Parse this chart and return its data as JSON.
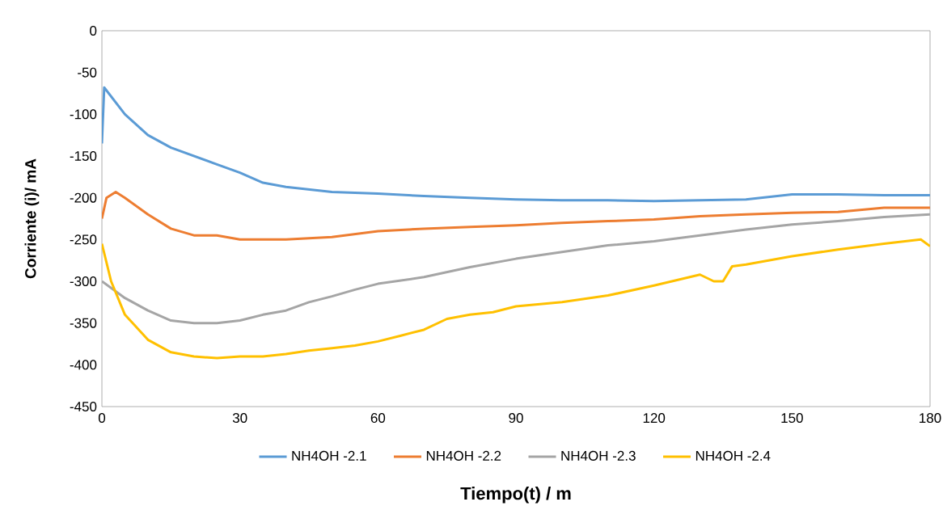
{
  "chart_data": {
    "type": "line",
    "xlabel": "Tiempo(t) / m",
    "ylabel": "Corriente (i)/ mA",
    "xlim": [
      0,
      180
    ],
    "ylim": [
      -450,
      0
    ],
    "xticks": [
      0,
      30,
      60,
      90,
      120,
      150,
      180
    ],
    "yticks": [
      -450,
      -400,
      -350,
      -300,
      -250,
      -200,
      -150,
      -100,
      -50,
      0
    ],
    "grid": false,
    "legend": "bottom",
    "marker": "none",
    "line_style": "solid",
    "series": [
      {
        "name": "NH4OH -2.1",
        "color": "#5b9bd5",
        "x": [
          0,
          0.5,
          5,
          10,
          15,
          20,
          25,
          30,
          35,
          40,
          45,
          50,
          60,
          70,
          80,
          90,
          100,
          110,
          120,
          130,
          140,
          150,
          160,
          170,
          180
        ],
        "values": [
          -135,
          -68,
          -100,
          -125,
          -140,
          -150,
          -160,
          -170,
          -182,
          -187,
          -190,
          -193,
          -195,
          -198,
          -200,
          -202,
          -203,
          -203,
          -204,
          -203,
          -202,
          -196,
          -196,
          -197,
          -197
        ]
      },
      {
        "name": "NH4OH -2.2",
        "color": "#ed7d31",
        "x": [
          0,
          1,
          3,
          5,
          10,
          15,
          20,
          25,
          30,
          35,
          40,
          50,
          60,
          70,
          80,
          90,
          100,
          110,
          120,
          130,
          140,
          150,
          160,
          170,
          180
        ],
        "values": [
          -225,
          -200,
          -193,
          -200,
          -220,
          -237,
          -245,
          -245,
          -250,
          -250,
          -250,
          -247,
          -240,
          -237,
          -235,
          -233,
          -230,
          -228,
          -226,
          -222,
          -220,
          -218,
          -217,
          -212,
          -212
        ]
      },
      {
        "name": "NH4OH -2.3",
        "color": "#a5a5a5",
        "x": [
          0,
          5,
          10,
          15,
          20,
          25,
          30,
          35,
          40,
          45,
          50,
          55,
          60,
          70,
          80,
          90,
          100,
          110,
          120,
          130,
          140,
          150,
          160,
          170,
          180
        ],
        "values": [
          -300,
          -320,
          -335,
          -347,
          -350,
          -350,
          -347,
          -340,
          -335,
          -325,
          -318,
          -310,
          -303,
          -295,
          -283,
          -273,
          -265,
          -257,
          -252,
          -245,
          -238,
          -232,
          -228,
          -223,
          -220
        ]
      },
      {
        "name": "NH4OH -2.4",
        "color": "#ffc000",
        "x": [
          0,
          2,
          5,
          10,
          15,
          20,
          25,
          30,
          35,
          40,
          45,
          50,
          55,
          60,
          65,
          70,
          75,
          80,
          85,
          90,
          100,
          110,
          120,
          130,
          133,
          135,
          137,
          140,
          150,
          160,
          170,
          178,
          180
        ],
        "values": [
          -255,
          -300,
          -340,
          -370,
          -385,
          -390,
          -392,
          -390,
          -390,
          -387,
          -383,
          -380,
          -377,
          -372,
          -365,
          -358,
          -345,
          -340,
          -337,
          -330,
          -325,
          -317,
          -305,
          -292,
          -300,
          -300,
          -282,
          -280,
          -270,
          -262,
          -255,
          -250,
          -258
        ]
      }
    ]
  }
}
